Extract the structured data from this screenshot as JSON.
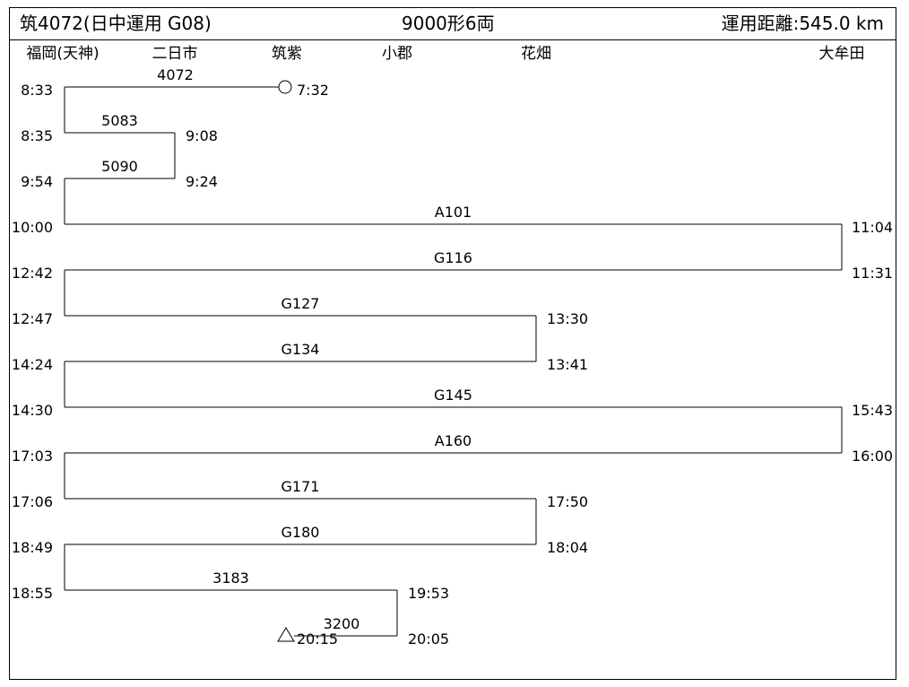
{
  "header": {
    "title": "筑4072(日中運用 G08)",
    "formation": "9000形6両",
    "distance": "運用距離:545.0 km"
  },
  "stations": [
    "福岡(天神)",
    "二日市",
    "筑紫",
    "小郡",
    "花畑",
    "大牟田"
  ],
  "legs": [
    {
      "train": "4072",
      "from": 2,
      "to": 0,
      "dep": "7:32",
      "arr": "8:33"
    },
    {
      "train": "5083",
      "from": 0,
      "to": 1,
      "dep": "8:35",
      "arr": "9:08"
    },
    {
      "train": "5090",
      "from": 1,
      "to": 0,
      "dep": "9:24",
      "arr": "9:54"
    },
    {
      "train": "A101",
      "from": 0,
      "to": 5,
      "dep": "10:00",
      "arr": "11:04"
    },
    {
      "train": "G116",
      "from": 5,
      "to": 0,
      "dep": "11:31",
      "arr": "12:42"
    },
    {
      "train": "G127",
      "from": 0,
      "to": 4,
      "dep": "12:47",
      "arr": "13:30"
    },
    {
      "train": "G134",
      "from": 4,
      "to": 0,
      "dep": "13:41",
      "arr": "14:24"
    },
    {
      "train": "G145",
      "from": 0,
      "to": 5,
      "dep": "14:30",
      "arr": "15:43"
    },
    {
      "train": "A160",
      "from": 5,
      "to": 0,
      "dep": "16:00",
      "arr": "17:03"
    },
    {
      "train": "G171",
      "from": 0,
      "to": 4,
      "dep": "17:06",
      "arr": "17:50"
    },
    {
      "train": "G180",
      "from": 4,
      "to": 0,
      "dep": "18:04",
      "arr": "18:49"
    },
    {
      "train": "3183",
      "from": 0,
      "to": 3,
      "dep": "18:55",
      "arr": "19:53"
    },
    {
      "train": "3200",
      "from": 3,
      "to": 2,
      "dep": "20:05",
      "arr": "20:15"
    }
  ],
  "start_marker": "circle",
  "end_marker": "triangle"
}
